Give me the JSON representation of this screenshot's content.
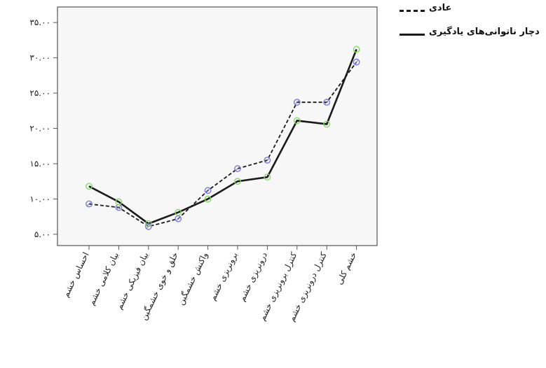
{
  "chart_data": {
    "type": "line",
    "categories": [
      "احساس خشم",
      "بیان کلامی خشم",
      "بیان فیزیکی خشم",
      "خلق و خوی خشمگین",
      "واکنش خشمگین",
      "برونریزی خشم",
      "درونریزی خشم",
      "کنترل برونریزی خشم",
      "کنترل درونریزی خشم",
      "خشم کلی"
    ],
    "series": [
      {
        "name": "عادی",
        "style": "dashed",
        "marker_color": "#7b7bd6",
        "values": [
          9.3,
          8.8,
          6.1,
          7.2,
          11.2,
          14.3,
          15.5,
          23.7,
          23.7,
          29.4
        ]
      },
      {
        "name": "دچار ناتوانی‌های یادگیری",
        "style": "solid",
        "marker_color": "#86d86c",
        "values": [
          11.8,
          9.6,
          6.5,
          8.1,
          10.0,
          12.5,
          13.1,
          21.1,
          20.6,
          31.2
        ]
      }
    ],
    "yticks": [
      "۵.۰۰",
      "۱۰.۰۰",
      "۱۵.۰۰",
      "۲۰.۰۰",
      "۲۵.۰۰",
      "۳۰.۰۰",
      "۳۵.۰۰"
    ],
    "ytick_values": [
      5,
      10,
      15,
      20,
      25,
      30,
      35
    ],
    "ylim": [
      3.4,
      37.2
    ],
    "title": "",
    "xlabel": "",
    "ylabel": "",
    "grid": false,
    "legend_position": "top-right",
    "colors": {
      "line": "#1a1a1a",
      "plot_background": "#f7f7f7",
      "axis": "#555555"
    }
  }
}
